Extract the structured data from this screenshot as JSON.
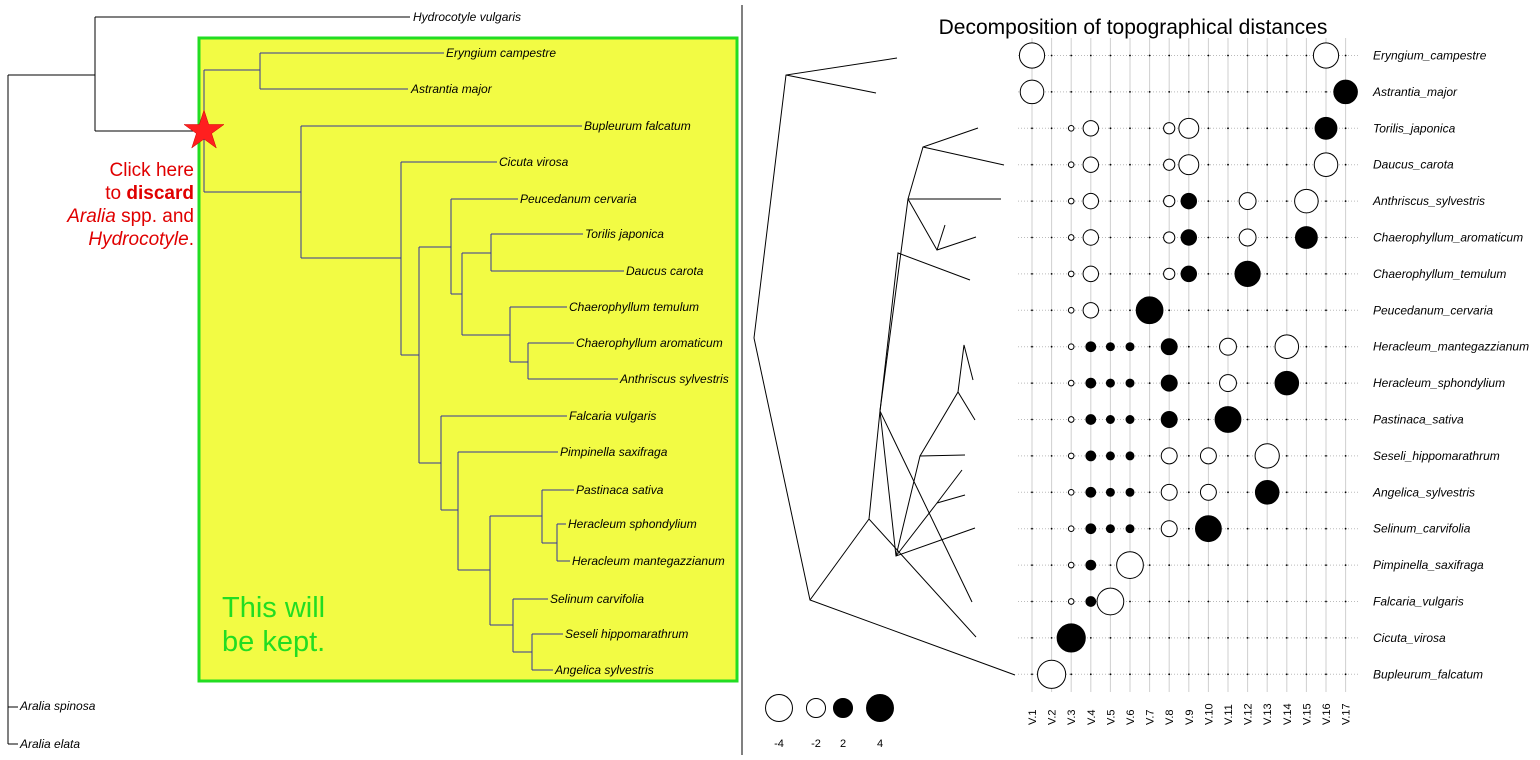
{
  "left_tree": {
    "tips": {
      "hydrocotyle": "Hydrocotyle vulgaris",
      "eryngium": "Eryngium campestre",
      "astrantia": "Astrantia major",
      "bupleurum": "Bupleurum falcatum",
      "cicuta": "Cicuta virosa",
      "peucedanum": "Peucedanum cervaria",
      "torilis": "Torilis japonica",
      "daucus": "Daucus carota",
      "chaero_tem": "Chaerophyllum temulum",
      "chaero_aro": "Chaerophyllum aromaticum",
      "anthriscus": "Anthriscus sylvestris",
      "falcaria": "Falcaria vulgaris",
      "pimpinella": "Pimpinella saxifraga",
      "pastinaca": "Pastinaca sativa",
      "hera_sph": "Heracleum sphondylium",
      "hera_man": "Heracleum mantegazzianum",
      "selinum": "Selinum carvifolia",
      "seseli": "Seseli hippomarathrum",
      "angelica": "Angelica sylvestris",
      "aralia_sp": "Aralia spinosa",
      "aralia_el": "Aralia elata"
    },
    "instruction": {
      "line1": "Click here",
      "line2_pre": "to ",
      "line2_bold": "discard",
      "line3_italic": "Aralia",
      "line3_rest": " spp. and",
      "line4_italic": "Hydrocotyle",
      "line4_rest": "."
    },
    "kept_label": {
      "line1": "This will",
      "line2": "be kept."
    },
    "colors": {
      "highlight_fill": "#f2fb44",
      "highlight_border": "#22dd22",
      "marker": "#ff1f1f",
      "instruction": "#e00000",
      "kept": "#22dd22"
    }
  },
  "panel": {
    "title": "Decomposition of topographical distances",
    "columns": [
      "V.1",
      "V.2",
      "V.3",
      "V.4",
      "V.5",
      "V.6",
      "V.7",
      "V.8",
      "V.9",
      "V.10",
      "V.11",
      "V.12",
      "V.13",
      "V.14",
      "V.15",
      "V.16",
      "V.17"
    ],
    "rows": [
      "Eryngium_campestre",
      "Astrantia_major",
      "Torilis_japonica",
      "Daucus_carota",
      "Anthriscus_sylvestris",
      "Chaerophyllum_aromaticum",
      "Chaerophyllum_temulum",
      "Peucedanum_cervaria",
      "Heracleum_mantegazzianum",
      "Heracleum_sphondylium",
      "Pastinaca_sativa",
      "Seseli_hippomarathrum",
      "Angelica_sylvestris",
      "Selinum_carvifolia",
      "Pimpinella_saxifraga",
      "Falcaria_vulgaris",
      "Cicuta_virosa",
      "Bupleurum_falcatum"
    ],
    "values": [
      [
        -4,
        0,
        0,
        0,
        0,
        0,
        0,
        0,
        0,
        0,
        0,
        0,
        0,
        0,
        0,
        -4,
        0
      ],
      [
        -3.5,
        0,
        0,
        0,
        0,
        0,
        0,
        0,
        0,
        0,
        0,
        0,
        0,
        0,
        0,
        0,
        3.5
      ],
      [
        0,
        0,
        -0.2,
        -1.5,
        0,
        0,
        0,
        -0.8,
        -2.5,
        0,
        0,
        0,
        0,
        0,
        0,
        3,
        0
      ],
      [
        0,
        0,
        -0.2,
        -1.5,
        0,
        0,
        0,
        -0.8,
        -2.5,
        0,
        0,
        0,
        0,
        0,
        0,
        -3.5,
        0
      ],
      [
        0,
        0,
        -0.2,
        -1.5,
        0,
        0,
        0,
        -0.8,
        1.5,
        0,
        0,
        -1.8,
        0,
        0,
        -3.5,
        0,
        0
      ],
      [
        0,
        0,
        -0.2,
        -1.5,
        0,
        0,
        0,
        -0.8,
        1.5,
        0,
        0,
        -1.8,
        0,
        0,
        3,
        0,
        0
      ],
      [
        0,
        0,
        -0.2,
        -1.5,
        0,
        0,
        0,
        -0.8,
        1.5,
        0,
        0,
        4,
        0,
        0,
        0,
        0,
        0
      ],
      [
        0,
        0,
        -0.2,
        -1.5,
        0,
        0,
        4.5,
        0,
        0,
        0,
        0,
        0,
        0,
        0,
        0,
        0,
        0
      ],
      [
        0,
        0,
        -0.2,
        0.6,
        0.4,
        0.4,
        0,
        1.6,
        0,
        0,
        -1.8,
        0,
        0,
        -3.5,
        0,
        0,
        0
      ],
      [
        0,
        0,
        -0.2,
        0.6,
        0.4,
        0.4,
        0,
        1.6,
        0,
        0,
        -1.8,
        0,
        0,
        3.5,
        0,
        0,
        0
      ],
      [
        0,
        0,
        -0.2,
        0.6,
        0.4,
        0.4,
        0,
        1.6,
        0,
        0,
        4.2,
        0,
        0,
        0,
        0,
        0,
        0
      ],
      [
        0,
        0,
        -0.2,
        0.6,
        0.4,
        0.4,
        0,
        -1.6,
        0,
        -1.6,
        0,
        0,
        -3.7,
        0,
        0,
        0,
        0
      ],
      [
        0,
        0,
        -0.2,
        0.6,
        0.4,
        0.4,
        0,
        -1.6,
        0,
        -1.6,
        0,
        0,
        3.5,
        0,
        0,
        0,
        0
      ],
      [
        0,
        0,
        -0.2,
        0.6,
        0.4,
        0.4,
        0,
        -1.6,
        0,
        4.2,
        0,
        0,
        0,
        0,
        0,
        0,
        0
      ],
      [
        0,
        0,
        -0.2,
        0.6,
        0,
        -4.5,
        0,
        0,
        0,
        0,
        0,
        0,
        0,
        0,
        0,
        0,
        0
      ],
      [
        0,
        0,
        -0.2,
        0.6,
        -4.5,
        0,
        0,
        0,
        0,
        0,
        0,
        0,
        0,
        0,
        0,
        0,
        0
      ],
      [
        0,
        0,
        5,
        0,
        0,
        0,
        0,
        0,
        0,
        0,
        0,
        0,
        0,
        0,
        0,
        0,
        0
      ],
      [
        0,
        -5,
        0,
        0,
        0,
        0,
        0,
        0,
        0,
        0,
        0,
        0,
        0,
        0,
        0,
        0,
        0
      ]
    ],
    "legend": [
      {
        "value": -4,
        "label": "-4"
      },
      {
        "value": -2,
        "label": "-2"
      },
      {
        "value": 2,
        "label": "2"
      },
      {
        "value": 4,
        "label": "4"
      }
    ]
  }
}
